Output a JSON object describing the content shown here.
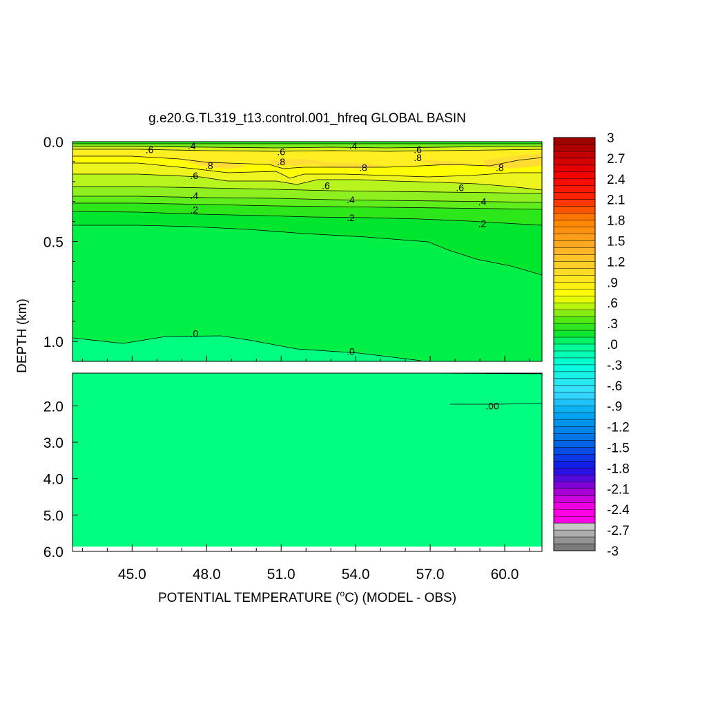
{
  "chart_data": {
    "type": "heatmap",
    "title": "g.e20.G.TL319_t13.control.001_hfreq GLOBAL BASIN",
    "xlabel_pre": "POTENTIAL TEMPERATURE (",
    "xlabel_sup": "o",
    "xlabel_post": "C) (MODEL - OBS)",
    "ylabel": "DEPTH (km)",
    "x_ticks": [
      "45.0",
      "48.0",
      "51.0",
      "54.0",
      "57.0",
      "60.0"
    ],
    "x_tick_values": [
      45,
      48,
      51,
      54,
      57,
      60
    ],
    "xlim": [
      42.6,
      61.5
    ],
    "upper_panel": {
      "ylim": [
        0.0,
        1.1
      ],
      "y_ticks": [
        "0.0",
        "0.5",
        "1.0"
      ],
      "y_tick_values": [
        0.0,
        0.5,
        1.0
      ]
    },
    "lower_panel": {
      "ylim": [
        1.1,
        6.0
      ],
      "y_ticks": [
        "2.0",
        "3.0",
        "4.0",
        "5.0",
        "6.0"
      ],
      "y_tick_values": [
        2.0,
        3.0,
        4.0,
        5.0,
        6.0
      ]
    },
    "colorbar": {
      "min": -3,
      "max": 3,
      "interval": 0.1,
      "labels": [
        "3",
        "2.7",
        "2.4",
        "2.1",
        "1.8",
        "1.5",
        "1.2",
        ".9",
        ".6",
        ".3",
        ".0",
        "-.3",
        "-.6",
        "-.9",
        "-1.2",
        "-1.5",
        "-1.8",
        "-2.1",
        "-2.4",
        "-2.7",
        "-3"
      ]
    },
    "contours": [
      {
        "label": ".6",
        "x": 45.7,
        "depth": 0.04
      },
      {
        "label": ".4",
        "x": 47.4,
        "depth": 0.02
      },
      {
        "label": ".6",
        "x": 51.0,
        "depth": 0.05
      },
      {
        "label": ".8",
        "x": 51.0,
        "depth": 0.1
      },
      {
        "label": ".4",
        "x": 53.9,
        "depth": 0.02
      },
      {
        "label": ".6",
        "x": 56.5,
        "depth": 0.04
      },
      {
        "label": ".8",
        "x": 56.5,
        "depth": 0.08
      },
      {
        "label": ".8",
        "x": 48.1,
        "depth": 0.12
      },
      {
        "label": ".8",
        "x": 54.3,
        "depth": 0.13
      },
      {
        "label": ".8",
        "x": 59.8,
        "depth": 0.13
      },
      {
        "label": ".6",
        "x": 47.5,
        "depth": 0.17
      },
      {
        "label": ".6",
        "x": 52.8,
        "depth": 0.22
      },
      {
        "label": ".6",
        "x": 58.2,
        "depth": 0.23
      },
      {
        "label": ".4",
        "x": 47.5,
        "depth": 0.27
      },
      {
        "label": ".4",
        "x": 53.8,
        "depth": 0.29
      },
      {
        "label": ".4",
        "x": 59.1,
        "depth": 0.3
      },
      {
        "label": ".2",
        "x": 47.5,
        "depth": 0.34
      },
      {
        "label": ".2",
        "x": 53.8,
        "depth": 0.38
      },
      {
        "label": ".2",
        "x": 59.1,
        "depth": 0.41
      },
      {
        "label": ".0",
        "x": 47.5,
        "depth": 0.96
      },
      {
        "label": ".0",
        "x": 53.8,
        "depth": 1.05
      },
      {
        "label": ".00",
        "x": 59.5,
        "depth": 2.0
      }
    ]
  }
}
